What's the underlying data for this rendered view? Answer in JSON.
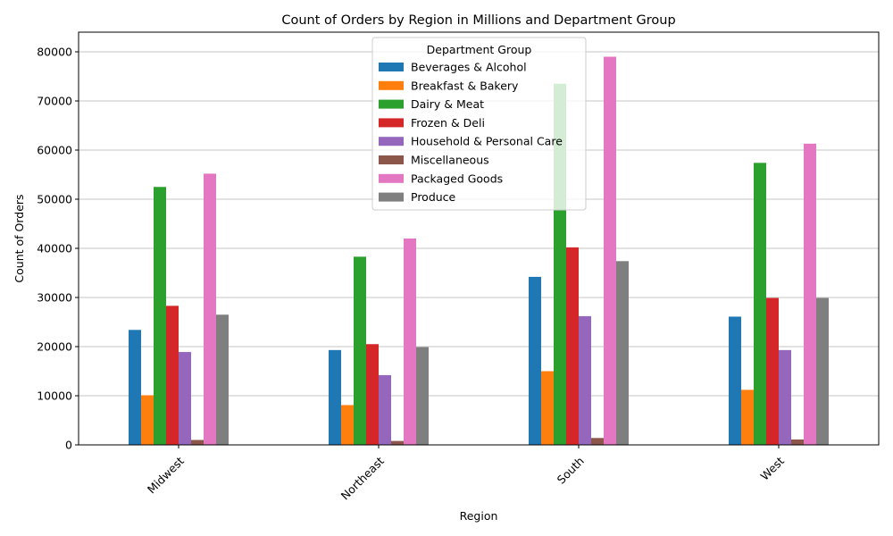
{
  "chart_data": {
    "type": "bar",
    "title": "Count of Orders by Region in Millions and Department Group",
    "xlabel": "Region",
    "ylabel": "Count of Orders",
    "categories": [
      "Midwest",
      "Northeast",
      "South",
      "West"
    ],
    "ylim": [
      0,
      84000
    ],
    "yticks": [
      0,
      10000,
      20000,
      30000,
      40000,
      50000,
      60000,
      70000,
      80000
    ],
    "grid": "y",
    "legend": {
      "title": "Department Group",
      "placement": "top-center"
    },
    "series": [
      {
        "name": "Beverages & Alcohol",
        "color": "#1f77b4",
        "values": [
          23400,
          19300,
          34200,
          26100
        ]
      },
      {
        "name": "Breakfast & Bakery",
        "color": "#ff7f0e",
        "values": [
          10100,
          8100,
          15000,
          11200
        ]
      },
      {
        "name": "Dairy & Meat",
        "color": "#2ca02c",
        "values": [
          52500,
          38300,
          73500,
          57400
        ]
      },
      {
        "name": "Frozen & Deli",
        "color": "#d62728",
        "values": [
          28300,
          20500,
          40200,
          29900
        ]
      },
      {
        "name": "Household & Personal Care",
        "color": "#9467bd",
        "values": [
          18900,
          14200,
          26200,
          19300
        ]
      },
      {
        "name": "Miscellaneous",
        "color": "#8c564b",
        "values": [
          1000,
          800,
          1400,
          1100
        ]
      },
      {
        "name": "Packaged Goods",
        "color": "#e377c2",
        "values": [
          55200,
          42000,
          79000,
          61300
        ]
      },
      {
        "name": "Produce",
        "color": "#7f7f7f",
        "values": [
          26500,
          19900,
          37400,
          29900
        ]
      }
    ]
  }
}
